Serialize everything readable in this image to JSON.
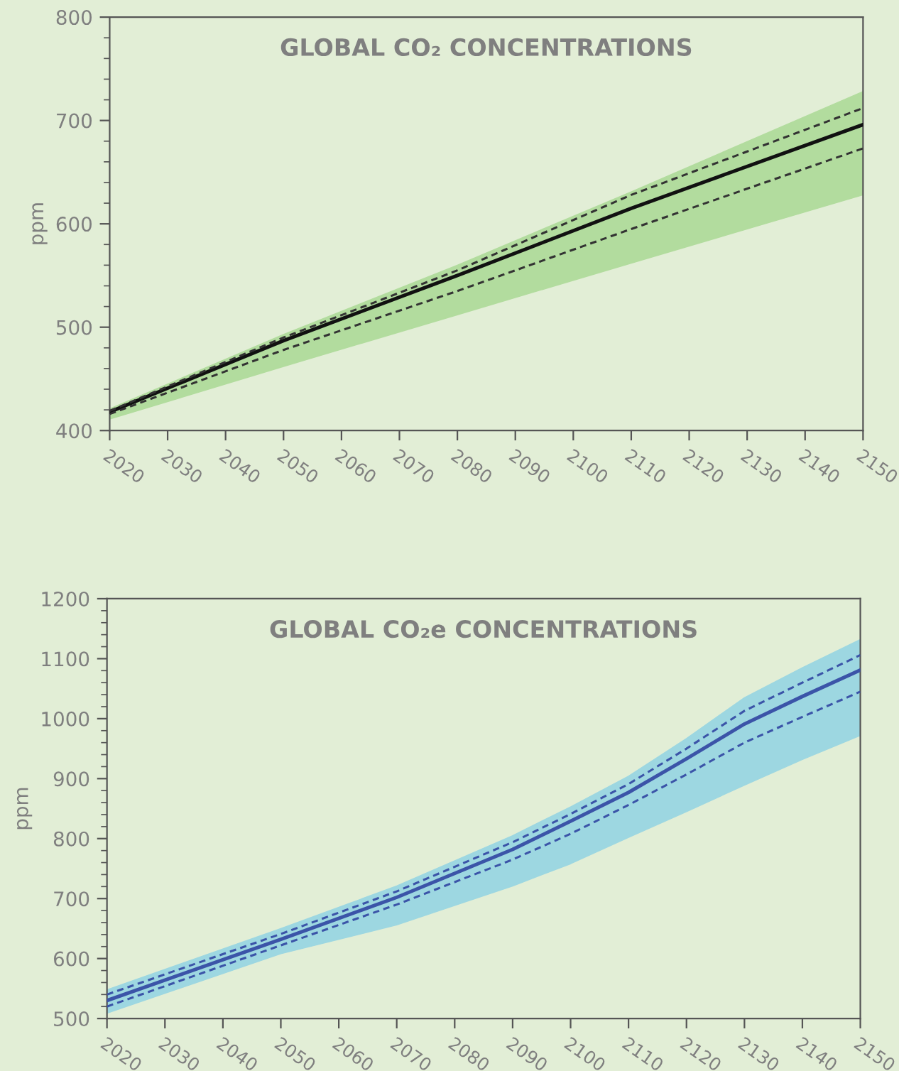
{
  "chart_data": [
    {
      "type": "line",
      "title": "GLOBAL CO₂ CONCENTRATIONS",
      "ylabel": "ppm",
      "x": [
        2020,
        2050,
        2080,
        2110,
        2150
      ],
      "xlim": [
        2020,
        2150
      ],
      "xticks": [
        2020,
        2030,
        2040,
        2050,
        2060,
        2070,
        2080,
        2090,
        2100,
        2110,
        2120,
        2130,
        2140,
        2150
      ],
      "ylim": [
        400,
        800
      ],
      "yticks": [
        400,
        500,
        600,
        700,
        800
      ],
      "grid": false,
      "legend": false,
      "marker": "none",
      "series": [
        {
          "color": "#111111",
          "line_style": "solid",
          "values": [
            418,
            487,
            550,
            615,
            696
          ],
          "lower": [
            411,
            462,
            512,
            562,
            628
          ],
          "upper": [
            421,
            493,
            560,
            631,
            728
          ]
        },
        {
          "color": "#333333",
          "line_style": "dashed",
          "values": [
            419,
            490,
            555,
            628,
            712
          ]
        },
        {
          "color": "#333333",
          "line_style": "dashed",
          "values": [
            416,
            478,
            535,
            595,
            673
          ]
        }
      ]
    },
    {
      "type": "line",
      "title": "GLOBAL CO₂e CONCENTRATIONS",
      "ylabel": "ppm",
      "x": [
        2020,
        2050,
        2070,
        2090,
        2100,
        2110,
        2120,
        2130,
        2140,
        2150
      ],
      "xlim": [
        2020,
        2150
      ],
      "xticks": [
        2020,
        2030,
        2040,
        2050,
        2060,
        2070,
        2080,
        2090,
        2100,
        2110,
        2120,
        2130,
        2140,
        2150
      ],
      "ylim": [
        500,
        1200
      ],
      "yticks": [
        500,
        600,
        700,
        800,
        900,
        1000,
        1100,
        1200
      ],
      "grid": false,
      "legend": false,
      "marker": "none",
      "series": [
        {
          "color": "#3b54a8",
          "line_style": "solid",
          "values": [
            530,
            632,
            702,
            782,
            829,
            877,
            933,
            991,
            1037,
            1081
          ],
          "lower": [
            509,
            608,
            656,
            721,
            758,
            802,
            845,
            889,
            932,
            972
          ],
          "upper": [
            548,
            650,
            721,
            805,
            853,
            904,
            967,
            1035,
            1085,
            1132
          ]
        },
        {
          "color": "#3b54a8",
          "line_style": "dashed",
          "values": [
            540,
            641,
            712,
            794,
            841,
            891,
            950,
            1013,
            1060,
            1106
          ]
        },
        {
          "color": "#3b54a8",
          "line_style": "dashed",
          "values": [
            520,
            622,
            690,
            765,
            808,
            856,
            907,
            960,
            1003,
            1045
          ]
        }
      ]
    }
  ]
}
